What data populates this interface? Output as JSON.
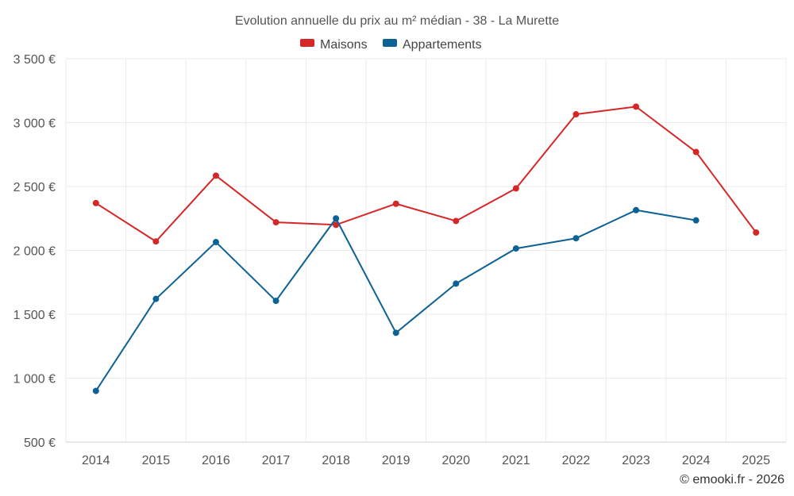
{
  "chart_data": {
    "type": "line",
    "title": "Evolution annuelle du prix au m² médian - 38 - La Murette",
    "categories": [
      "2014",
      "2015",
      "2016",
      "2017",
      "2018",
      "2019",
      "2020",
      "2021",
      "2022",
      "2023",
      "2024",
      "2025"
    ],
    "series": [
      {
        "name": "Maisons",
        "color": "#d62728",
        "values": [
          2370,
          2070,
          2585,
          2220,
          2200,
          2365,
          2230,
          2485,
          3065,
          3125,
          2770,
          2140
        ]
      },
      {
        "name": "Appartements",
        "color": "#0d6295",
        "values": [
          900,
          1620,
          2065,
          1605,
          2250,
          1355,
          1740,
          2015,
          2095,
          2315,
          2235,
          null
        ]
      }
    ],
    "ylim": [
      500,
      3500
    ],
    "yticks": [
      500,
      1000,
      1500,
      2000,
      2500,
      3000,
      3500
    ],
    "ytick_labels": [
      "500 €",
      "1 000 €",
      "1 500 €",
      "2 000 €",
      "2 500 €",
      "3 000 €",
      "3 500 €"
    ],
    "xlabel": "",
    "ylabel": "",
    "legend_position": "top-center",
    "grid": true
  },
  "credit": "© emooki.fr - 2026"
}
